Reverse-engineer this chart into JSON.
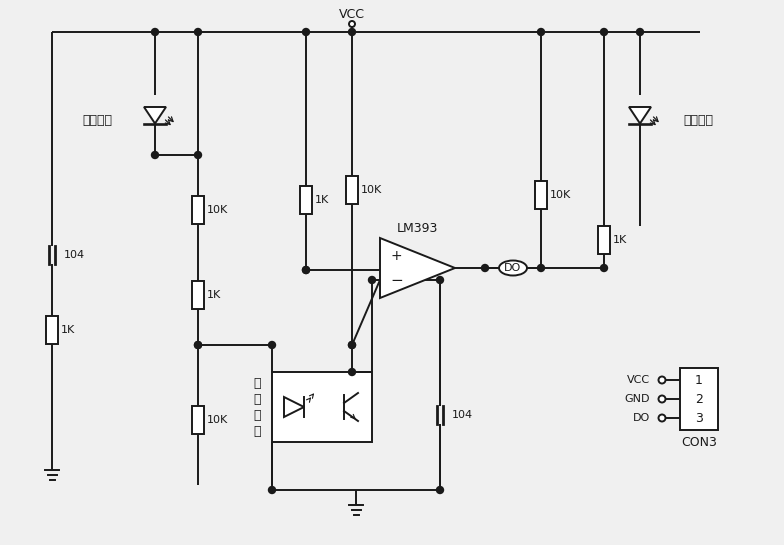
{
  "bg_color": "#f0f0f0",
  "line_color": "#1a1a1a",
  "text_color": "#1a1a1a",
  "figsize": [
    7.84,
    5.45
  ],
  "dpi": 100,
  "labels": {
    "vcc": "VCC",
    "power_led": "电源指示",
    "switch_led": "开关指示",
    "r_10k_1": "10K",
    "r_1k_1": "1K",
    "r_1k_2": "1K",
    "r_10k_2": "10K",
    "r_10k_3": "10K",
    "r_10k_4": "10K",
    "r_1k_3": "1K",
    "c1": "104",
    "c2": "104",
    "lm393": "LM393",
    "opto_label": "槽\n型\n光\n耦",
    "do": "DO",
    "con3_vcc": "VCC",
    "con3_gnd": "GND",
    "con3_do": "DO",
    "con3": "CON3",
    "plus": "+",
    "minus": "−"
  }
}
